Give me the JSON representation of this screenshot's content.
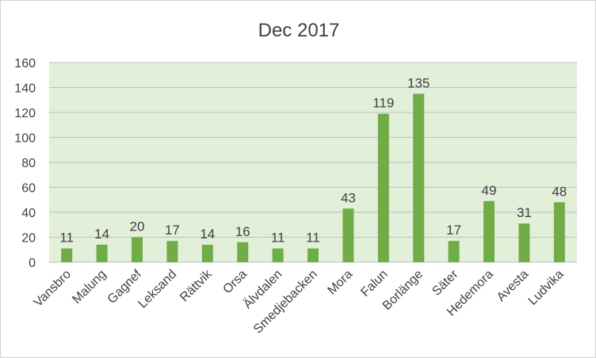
{
  "chart_data": {
    "type": "bar",
    "title": "Dec 2017",
    "xlabel": "",
    "ylabel": "",
    "ylim": [
      0,
      160
    ],
    "yticks": [
      0,
      20,
      40,
      60,
      80,
      100,
      120,
      140,
      160
    ],
    "grid": true,
    "legend": "none",
    "categories": [
      "Vansbro",
      "Malung",
      "Gagnef",
      "Leksand",
      "Rättvik",
      "Orsa",
      "Älvdalen",
      "Smedjebacken",
      "Mora",
      "Falun",
      "Borlänge",
      "Säter",
      "Hedemora",
      "Avesta",
      "Ludvika"
    ],
    "values": [
      11,
      14,
      20,
      17,
      14,
      16,
      11,
      11,
      43,
      119,
      135,
      17,
      49,
      31,
      48
    ],
    "colors": {
      "bar": "#70ad47",
      "plot_background": "#e2efd9",
      "gridline": "#bfbfbf",
      "axis": "#bfbfbf",
      "text": "#404040"
    }
  }
}
